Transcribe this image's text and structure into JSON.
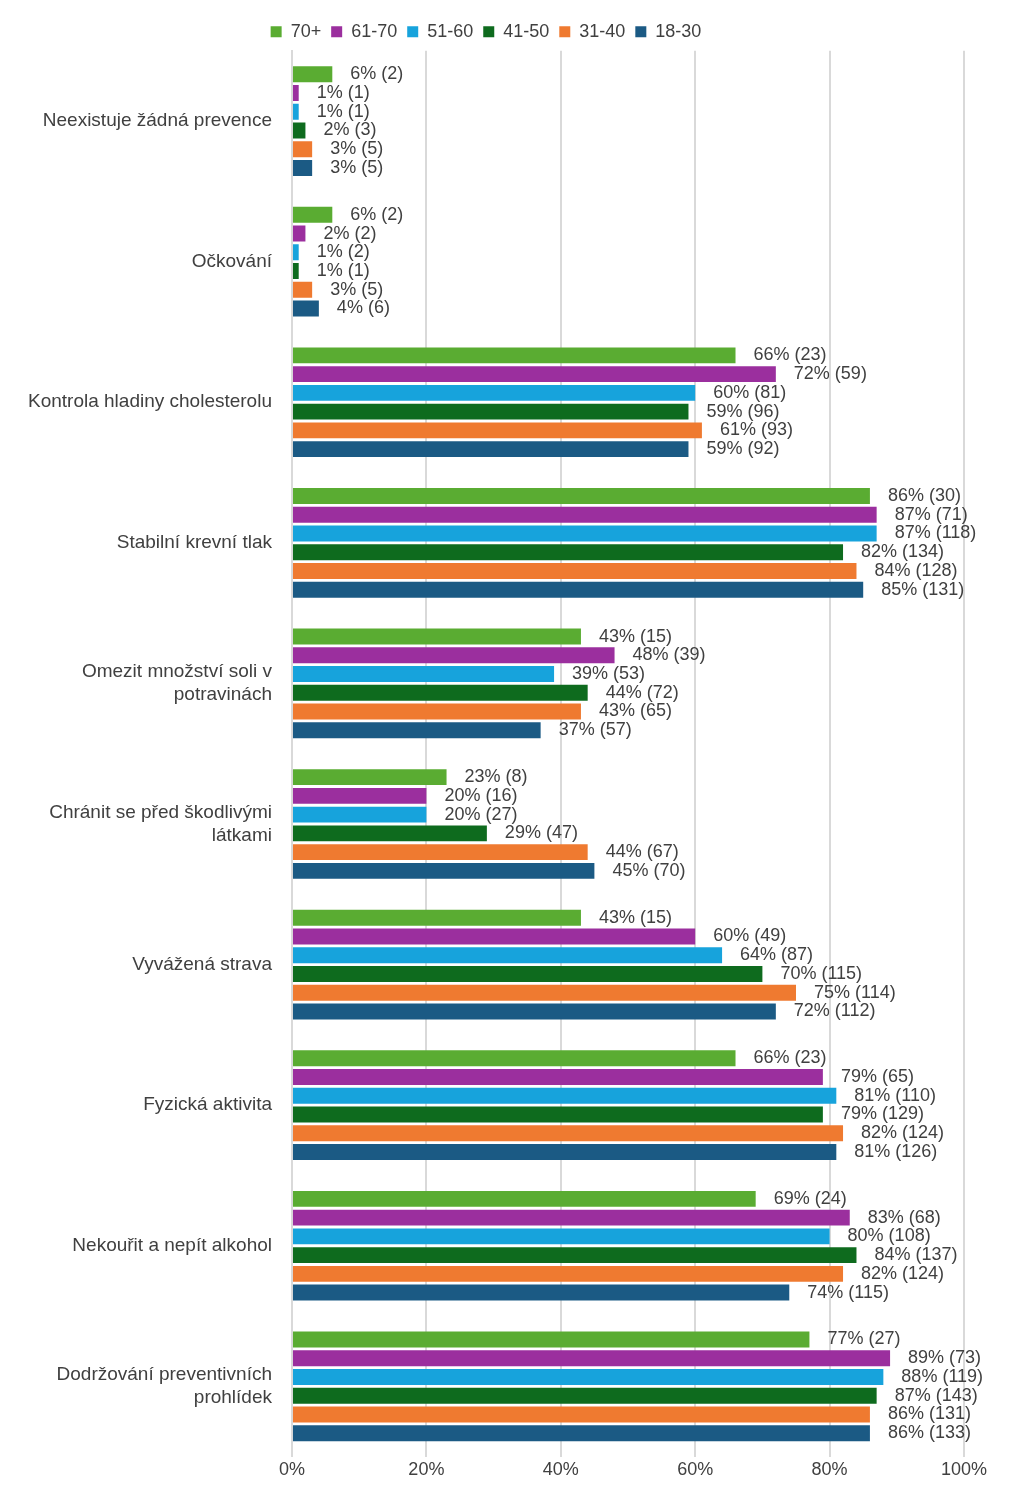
{
  "chart_data": {
    "type": "bar",
    "orientation": "horizontal",
    "legend": "top",
    "grid": "x",
    "categories": [
      "Neexistuje žádná prevence",
      "Očkování",
      "Kontrola hladiny cholesterolu",
      "Stabilní krevní tlak",
      "Omezit množství soli v potravinách",
      "Chránit se před škodlivými látkami",
      "Vyvážená strava",
      "Fyzická aktivita",
      "Nekouřit a nepít alkohol",
      "Dodržování preventivních prohlídek"
    ],
    "xlim": [
      0,
      100
    ],
    "xticks": [
      {
        "value": 0,
        "label": "0%"
      },
      {
        "value": 20,
        "label": "20%"
      },
      {
        "value": 40,
        "label": "40%"
      },
      {
        "value": 60,
        "label": "60%"
      },
      {
        "value": 80,
        "label": "80%"
      },
      {
        "value": 100,
        "label": "100%"
      }
    ],
    "series": [
      {
        "name": "70+",
        "color": "#5aac32",
        "values": [
          6,
          6,
          66,
          86,
          43,
          23,
          43,
          66,
          69,
          77
        ],
        "value_labels": [
          "6% (2)",
          "6% (2)",
          "66% (23)",
          "86% (30)",
          "43% (15)",
          "23% (8)",
          "43% (15)",
          "66% (23)",
          "69% (24)",
          "77% (27)"
        ]
      },
      {
        "name": "61-70",
        "color": "#9b2f9e",
        "values": [
          1,
          2,
          72,
          87,
          48,
          20,
          60,
          79,
          83,
          89
        ],
        "value_labels": [
          "1% (1)",
          "2% (2)",
          "72% (59)",
          "87% (71)",
          "48% (39)",
          "20% (16)",
          "60% (49)",
          "79% (65)",
          "83% (68)",
          "89% (73)"
        ]
      },
      {
        "name": "51-60",
        "color": "#17a3dc",
        "values": [
          1,
          1,
          60,
          87,
          39,
          20,
          64,
          81,
          80,
          88
        ],
        "value_labels": [
          "1% (1)",
          "1% (2)",
          "60% (81)",
          "87% (118)",
          "39% (53)",
          "20% (27)",
          "64% (87)",
          "81% (110)",
          "80% (108)",
          "88% (119)"
        ]
      },
      {
        "name": "41-50",
        "color": "#0e6b1e",
        "values": [
          2,
          1,
          59,
          82,
          44,
          29,
          70,
          79,
          84,
          87
        ],
        "value_labels": [
          "2% (3)",
          "1% (1)",
          "59% (96)",
          "82% (134)",
          "44% (72)",
          "29% (47)",
          "70% (115)",
          "79% (129)",
          "84% (137)",
          "87% (143)"
        ]
      },
      {
        "name": "31-40",
        "color": "#ef7a30",
        "values": [
          3,
          3,
          61,
          84,
          43,
          44,
          75,
          82,
          82,
          86
        ],
        "value_labels": [
          "3% (5)",
          "3% (5)",
          "61% (93)",
          "84% (128)",
          "43% (65)",
          "44% (67)",
          "75% (114)",
          "82% (124)",
          "82% (124)",
          "86% (131)"
        ]
      },
      {
        "name": "18-30",
        "color": "#1b5a84",
        "values": [
          3,
          4,
          59,
          85,
          37,
          45,
          72,
          81,
          74,
          86
        ],
        "value_labels": [
          "3% (5)",
          "4% (6)",
          "59% (92)",
          "85% (131)",
          "37% (57)",
          "45% (70)",
          "72% (112)",
          "81% (126)",
          "74% (115)",
          "86% (133)"
        ]
      }
    ]
  }
}
